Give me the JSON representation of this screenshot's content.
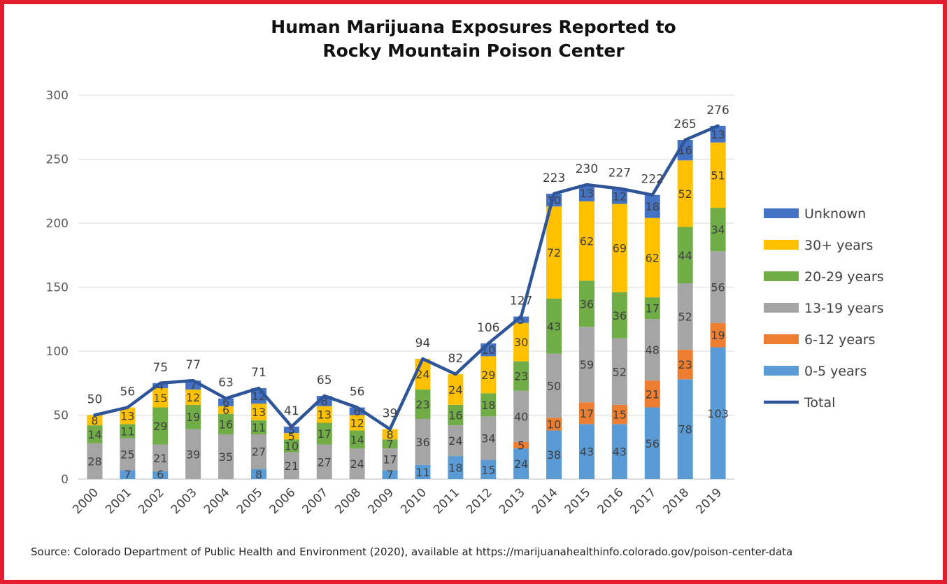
{
  "title_line1": "Human Marijuana Exposures Reported to",
  "title_line2": "Rocky Mountain Poison Center",
  "source": "Source: Colorado Department of Public Health and Environment (2020), available at https://marijuanahealthinfo.colorado.gov/poison-center-data",
  "chart_data": {
    "type": "bar",
    "stacked": true,
    "title": "Human Marijuana Exposures Reported to Rocky Mountain Poison Center",
    "xlabel": "",
    "ylabel": "",
    "ylim": [
      0,
      300
    ],
    "yticks": [
      0,
      50,
      100,
      150,
      200,
      250,
      300
    ],
    "grid": true,
    "legend": "right",
    "categories": [
      "2000",
      "2001",
      "2002",
      "2003",
      "2004",
      "2005",
      "2006",
      "2007",
      "2008",
      "2009",
      "2010",
      "2011",
      "2012",
      "2013",
      "2014",
      "2015",
      "2016",
      "2017",
      "2018",
      "2019"
    ],
    "series": [
      {
        "name": "0-5 years",
        "color": "#5b9bd5",
        "values": [
          0,
          7,
          6,
          0,
          0,
          8,
          0,
          0,
          0,
          7,
          11,
          18,
          15,
          24,
          38,
          43,
          43,
          56,
          78,
          103
        ]
      },
      {
        "name": "6-12 years",
        "color": "#ed7d31",
        "values": [
          0,
          0,
          0,
          0,
          0,
          0,
          0,
          0,
          0,
          0,
          0,
          0,
          0,
          5,
          10,
          17,
          15,
          21,
          23,
          19
        ]
      },
      {
        "name": "13-19 years",
        "color": "#a5a5a5",
        "values": [
          28,
          25,
          21,
          39,
          35,
          27,
          21,
          27,
          24,
          17,
          36,
          24,
          34,
          40,
          50,
          59,
          52,
          48,
          52,
          56
        ]
      },
      {
        "name": "20-29 years",
        "color": "#70ad47",
        "values": [
          14,
          11,
          29,
          19,
          16,
          11,
          10,
          17,
          14,
          7,
          23,
          16,
          18,
          23,
          43,
          36,
          36,
          17,
          44,
          34
        ]
      },
      {
        "name": "30+ years",
        "color": "#ffc000",
        "values": [
          8,
          13,
          15,
          12,
          6,
          13,
          5,
          13,
          12,
          8,
          24,
          24,
          29,
          30,
          72,
          62,
          69,
          62,
          52,
          51
        ]
      },
      {
        "name": "Unknown",
        "color": "#4472c4",
        "values": [
          0,
          0,
          4,
          7,
          6,
          12,
          5,
          8,
          6,
          0,
          0,
          0,
          10,
          5,
          10,
          13,
          12,
          18,
          16,
          13
        ]
      }
    ],
    "total": {
      "name": "Total",
      "color": "#2e5597",
      "values": [
        50,
        56,
        75,
        77,
        63,
        71,
        41,
        65,
        56,
        39,
        94,
        82,
        106,
        127,
        223,
        230,
        227,
        222,
        265,
        276
      ]
    },
    "data_labels": {
      "0-5 years": [
        "",
        "7",
        "6",
        "",
        "",
        "8",
        "",
        "",
        "",
        "7",
        "11",
        "18",
        "15",
        "24",
        "38",
        "43",
        "43",
        "56",
        "78",
        "103"
      ],
      "6-12 years": [
        "",
        "",
        "",
        "",
        "",
        "",
        "",
        "",
        "",
        "",
        "",
        "",
        "",
        "5",
        "10",
        "17",
        "15",
        "21",
        "23",
        "19"
      ],
      "13-19 years": [
        "28",
        "25",
        "21",
        "39",
        "35",
        "27",
        "21",
        "27",
        "24",
        "17",
        "36",
        "24",
        "34",
        "40",
        "50",
        "59",
        "52",
        "48",
        "52",
        "56"
      ],
      "20-29 years": [
        "14",
        "11",
        "29",
        "19",
        "16",
        "11",
        "10",
        "17",
        "14",
        "7",
        "23",
        "16",
        "18",
        "23",
        "43",
        "36",
        "36",
        "17",
        "44",
        "34"
      ],
      "30+ years": [
        "8",
        "13",
        "15",
        "12",
        "6",
        "13",
        "5",
        "13",
        "12",
        "8",
        "24",
        "24",
        "29",
        "30",
        "72",
        "62",
        "69",
        "62",
        "52",
        "51"
      ],
      "Unknown": [
        "",
        "",
        "4",
        "7",
        "6",
        "12",
        "5",
        "8",
        "6",
        "",
        "",
        "",
        "10",
        "5",
        "10",
        "13",
        "12",
        "18",
        "16",
        "13"
      ],
      "Total": [
        "50",
        "56",
        "75",
        "77",
        "63",
        "71",
        "41",
        "65",
        "56",
        "39",
        "94",
        "82",
        "106",
        "127",
        "223",
        "230",
        "227",
        "222",
        "265",
        "276"
      ]
    },
    "legend_order": [
      "Unknown",
      "30+ years",
      "20-29 years",
      "13-19 years",
      "6-12 years",
      "0-5 years",
      "Total"
    ]
  }
}
